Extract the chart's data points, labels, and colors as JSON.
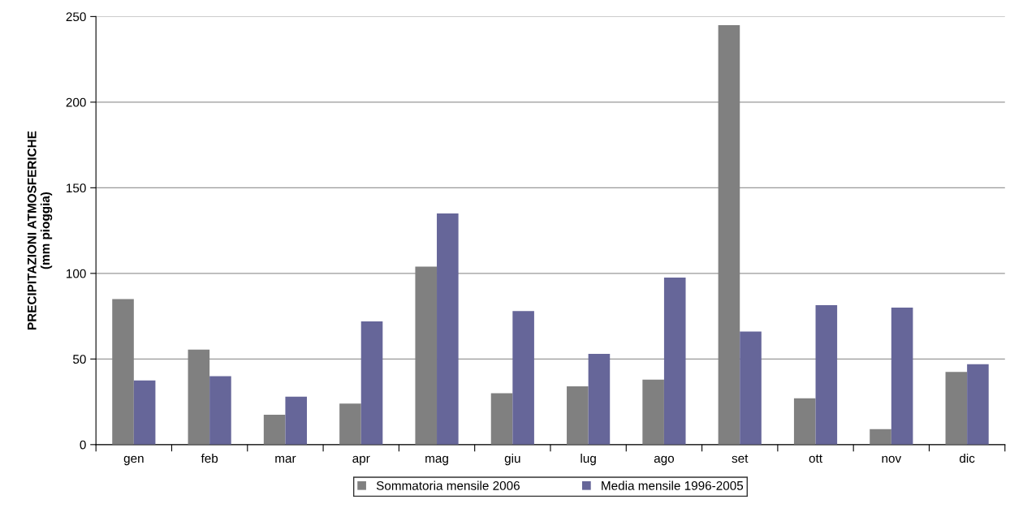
{
  "chart_data": {
    "type": "bar",
    "ylabel": "PRECIPITAZIONI ATMOSFERICHE\n(mm pioggia)",
    "categories": [
      "gen",
      "feb",
      "mar",
      "apr",
      "mag",
      "giu",
      "lug",
      "ago",
      "set",
      "ott",
      "nov",
      "dic"
    ],
    "series": [
      {
        "name": "Sommatoria mensile 2006",
        "color": "#808080",
        "values": [
          85,
          55.5,
          17.5,
          24,
          104,
          30,
          34,
          38,
          245,
          27,
          9,
          42.5
        ]
      },
      {
        "name": "Media mensile 1996-2005",
        "color": "#666699",
        "values": [
          37.5,
          40,
          28,
          72,
          135,
          78,
          53,
          97.5,
          66,
          81.5,
          80,
          47
        ]
      }
    ],
    "ylim": [
      0,
      250
    ],
    "yticks": [
      0,
      50,
      100,
      150,
      200,
      250
    ],
    "grid": "y",
    "legend": "bottom"
  }
}
